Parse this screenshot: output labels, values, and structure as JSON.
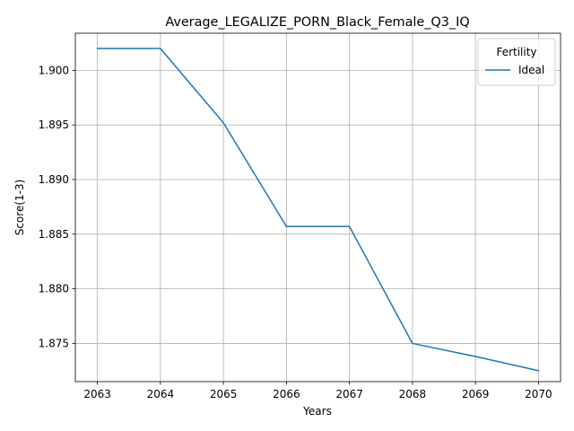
{
  "chart_data": {
    "type": "line",
    "title": "Average_LEGALIZE_PORN_Black_Female_Q3_IQ",
    "xlabel": "Years",
    "ylabel": "Score(1-3)",
    "x": [
      2063,
      2064,
      2065,
      2066,
      2067,
      2068,
      2069,
      2070
    ],
    "x_ticks": [
      "2063",
      "2064",
      "2065",
      "2066",
      "2067",
      "2068",
      "2069",
      "2070"
    ],
    "y_ticks": [
      "1.875",
      "1.880",
      "1.885",
      "1.890",
      "1.895",
      "1.900"
    ],
    "xlim": [
      2062.65,
      2070.35
    ],
    "ylim": [
      1.8715,
      1.9034
    ],
    "grid": true,
    "legend": {
      "title": "Fertility",
      "placement": "top-right"
    },
    "series": [
      {
        "name": "Ideal",
        "color": "#1f77b4",
        "values": [
          1.902,
          1.902,
          1.8952,
          1.8857,
          1.8857,
          1.875,
          1.8738,
          1.8725
        ]
      }
    ]
  }
}
